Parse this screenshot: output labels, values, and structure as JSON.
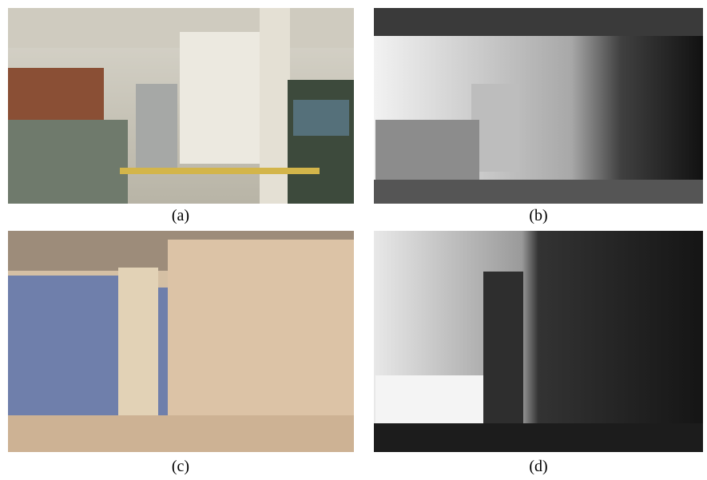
{
  "figure": {
    "panels": [
      {
        "caption": "(a)"
      },
      {
        "caption": "(b)"
      },
      {
        "caption": "(c)"
      },
      {
        "caption": "(d)"
      }
    ]
  }
}
